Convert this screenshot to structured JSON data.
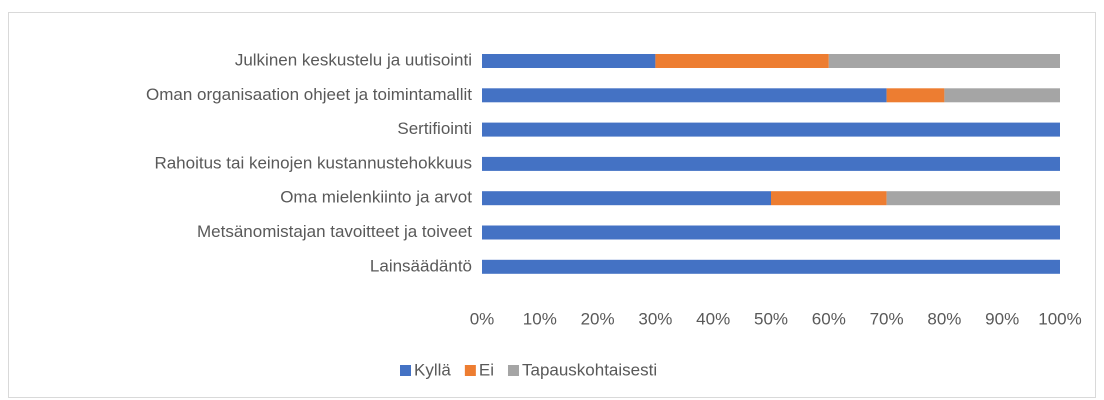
{
  "chart_data": {
    "type": "stacked_barh",
    "categories": [
      "Julkinen keskustelu ja uutisointi",
      "Oman organisaation ohjeet ja toimintamallit",
      "Sertifiointi",
      "Rahoitus tai keinojen kustannustehokkuus",
      "Oma mielenkiinto ja arvot",
      "Metsänomistajan tavoitteet ja toiveet",
      "Lainsäädäntö"
    ],
    "series": [
      {
        "name": "Kyllä",
        "color": "#4472c4",
        "values": [
          30,
          70,
          100,
          100,
          50,
          100,
          100
        ]
      },
      {
        "name": "Ei",
        "color": "#ed7d31",
        "values": [
          30,
          10,
          0,
          0,
          20,
          0,
          0
        ]
      },
      {
        "name": "Tapauskohtaisesti",
        "color": "#a5a5a5",
        "values": [
          40,
          20,
          0,
          0,
          30,
          0,
          0
        ]
      }
    ],
    "xlim": [
      0,
      100
    ],
    "xticks": [
      {
        "value": 0,
        "label": "0%"
      },
      {
        "value": 10,
        "label": "10%"
      },
      {
        "value": 20,
        "label": "20%"
      },
      {
        "value": 30,
        "label": "30%"
      },
      {
        "value": 40,
        "label": "40%"
      },
      {
        "value": 50,
        "label": "50%"
      },
      {
        "value": 60,
        "label": "60%"
      },
      {
        "value": 70,
        "label": "70%"
      },
      {
        "value": 80,
        "label": "80%"
      },
      {
        "value": 90,
        "label": "90%"
      },
      {
        "value": 100,
        "label": "100%"
      }
    ],
    "legend": "bottom"
  }
}
